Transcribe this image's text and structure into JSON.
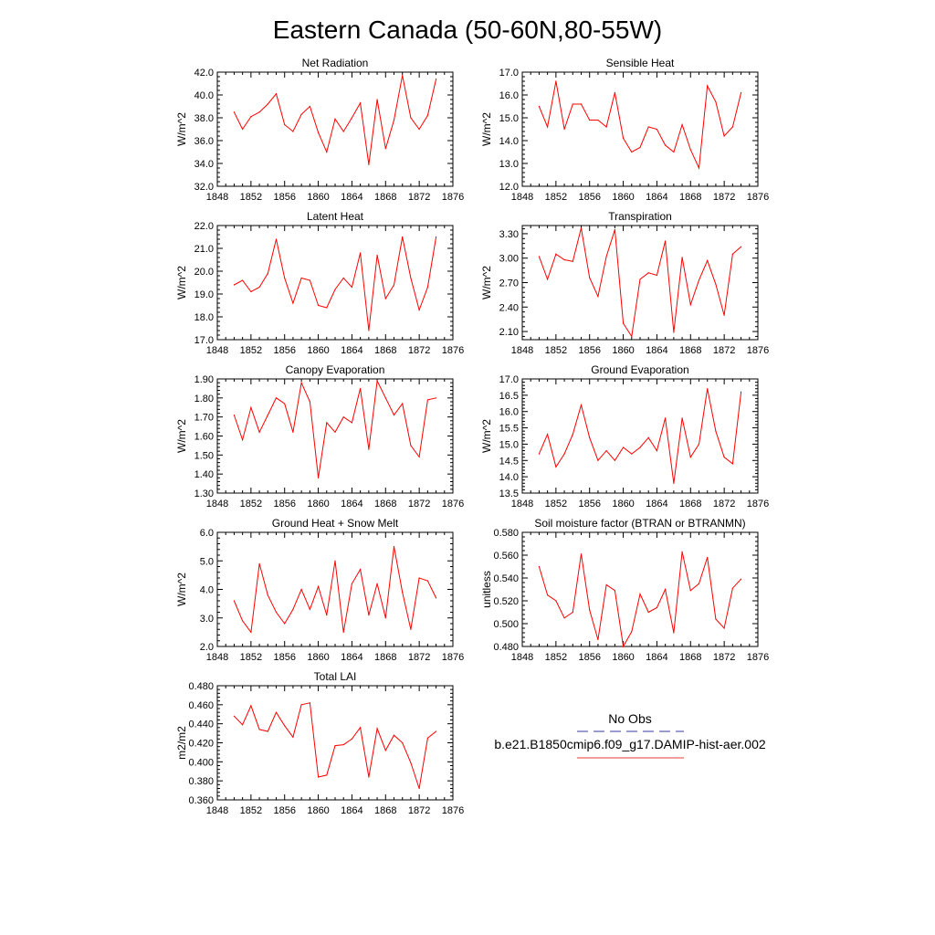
{
  "figure": {
    "title": "Eastern Canada (50-60N,80-55W)"
  },
  "legend": {
    "obs_label": "No Obs",
    "obs_color": "#3a3aa0",
    "model_label": "b.e21.B1850cmip6.f09_g17.DAMIP-hist-aer.002",
    "model_color": "#e43a3a"
  },
  "chart_data": [
    {
      "type": "line",
      "title": "Net Radiation",
      "ylabel": "W/m^2",
      "xlim": [
        1848,
        1876
      ],
      "xticks": [
        "1848",
        "1852",
        "1856",
        "1860",
        "1864",
        "1868",
        "1872",
        "1876"
      ],
      "ylim": [
        32.0,
        42.0
      ],
      "yticks": [
        "32.0",
        "34.0",
        "36.0",
        "38.0",
        "40.0",
        "42.0"
      ],
      "series": [
        {
          "color": "#ff0000",
          "x": [
            1850,
            1851,
            1852,
            1853,
            1854,
            1855,
            1856,
            1857,
            1858,
            1859,
            1860,
            1861,
            1862,
            1863,
            1864,
            1865,
            1866,
            1867,
            1868,
            1869,
            1870,
            1871,
            1872,
            1873,
            1874
          ],
          "values": [
            38.5,
            37.0,
            38.1,
            38.5,
            39.2,
            40.1,
            37.4,
            36.8,
            38.3,
            39.0,
            36.7,
            35.0,
            37.9,
            36.8,
            38.0,
            39.3,
            33.9,
            39.6,
            35.3,
            37.8,
            41.7,
            38.0,
            37.0,
            38.2,
            41.4
          ]
        }
      ]
    },
    {
      "type": "line",
      "title": "Sensible Heat",
      "ylabel": "W/m^2",
      "xlim": [
        1848,
        1876
      ],
      "xticks": [
        "1848",
        "1852",
        "1856",
        "1860",
        "1864",
        "1868",
        "1872",
        "1876"
      ],
      "ylim": [
        12.0,
        17.0
      ],
      "yticks": [
        "12.0",
        "13.0",
        "14.0",
        "15.0",
        "16.0",
        "17.0"
      ],
      "series": [
        {
          "color": "#ff0000",
          "x": [
            1850,
            1851,
            1852,
            1853,
            1854,
            1855,
            1856,
            1857,
            1858,
            1859,
            1860,
            1861,
            1862,
            1863,
            1864,
            1865,
            1866,
            1867,
            1868,
            1869,
            1870,
            1871,
            1872,
            1873,
            1874
          ],
          "values": [
            15.5,
            14.6,
            16.6,
            14.5,
            15.6,
            15.6,
            14.9,
            14.9,
            14.6,
            16.1,
            14.1,
            13.5,
            13.7,
            14.6,
            14.5,
            13.8,
            13.5,
            14.7,
            13.6,
            12.8,
            16.4,
            15.7,
            14.2,
            14.6,
            16.1
          ]
        }
      ]
    },
    {
      "type": "line",
      "title": "Latent Heat",
      "ylabel": "W/m^2",
      "xlim": [
        1848,
        1876
      ],
      "xticks": [
        "1848",
        "1852",
        "1856",
        "1860",
        "1864",
        "1868",
        "1872",
        "1876"
      ],
      "ylim": [
        17.0,
        22.0
      ],
      "yticks": [
        "17.0",
        "18.0",
        "19.0",
        "20.0",
        "21.0",
        "22.0"
      ],
      "series": [
        {
          "color": "#ff0000",
          "x": [
            1850,
            1851,
            1852,
            1853,
            1854,
            1855,
            1856,
            1857,
            1858,
            1859,
            1860,
            1861,
            1862,
            1863,
            1864,
            1865,
            1866,
            1867,
            1868,
            1869,
            1870,
            1871,
            1872,
            1873,
            1874
          ],
          "values": [
            19.4,
            19.6,
            19.1,
            19.3,
            19.9,
            21.4,
            19.7,
            18.6,
            19.7,
            19.6,
            18.5,
            18.4,
            19.2,
            19.7,
            19.3,
            20.8,
            17.4,
            20.7,
            18.8,
            19.4,
            21.5,
            19.7,
            18.3,
            19.3,
            21.5
          ]
        }
      ]
    },
    {
      "type": "line",
      "title": "Transpiration",
      "ylabel": "W/m^2",
      "xlim": [
        1848,
        1876
      ],
      "xticks": [
        "1848",
        "1852",
        "1856",
        "1860",
        "1864",
        "1868",
        "1872",
        "1876"
      ],
      "ylim": [
        2.0,
        3.4
      ],
      "yticks": [
        "2.10",
        "2.40",
        "2.70",
        "3.00",
        "3.30"
      ],
      "ytick_values": [
        2.1,
        2.4,
        2.7,
        3.0,
        3.3
      ],
      "series": [
        {
          "color": "#ff0000",
          "x": [
            1850,
            1851,
            1852,
            1853,
            1854,
            1855,
            1856,
            1857,
            1858,
            1859,
            1860,
            1861,
            1862,
            1863,
            1864,
            1865,
            1866,
            1867,
            1868,
            1869,
            1870,
            1871,
            1872,
            1873,
            1874
          ],
          "values": [
            3.02,
            2.74,
            3.05,
            2.98,
            2.96,
            3.37,
            2.76,
            2.53,
            3.02,
            3.35,
            2.2,
            2.04,
            2.74,
            2.82,
            2.79,
            3.21,
            2.09,
            3.01,
            2.43,
            2.73,
            2.97,
            2.68,
            2.3,
            3.05,
            3.14
          ]
        }
      ]
    },
    {
      "type": "line",
      "title": "Canopy Evaporation",
      "ylabel": "W/m^2",
      "xlim": [
        1848,
        1876
      ],
      "xticks": [
        "1848",
        "1852",
        "1856",
        "1860",
        "1864",
        "1868",
        "1872",
        "1876"
      ],
      "ylim": [
        1.3,
        1.9
      ],
      "yticks": [
        "1.30",
        "1.40",
        "1.50",
        "1.60",
        "1.70",
        "1.80",
        "1.90"
      ],
      "series": [
        {
          "color": "#ff0000",
          "x": [
            1850,
            1851,
            1852,
            1853,
            1854,
            1855,
            1856,
            1857,
            1858,
            1859,
            1860,
            1861,
            1862,
            1863,
            1864,
            1865,
            1866,
            1867,
            1868,
            1869,
            1870,
            1871,
            1872,
            1873,
            1874
          ],
          "values": [
            1.71,
            1.58,
            1.75,
            1.62,
            1.71,
            1.8,
            1.77,
            1.62,
            1.88,
            1.78,
            1.38,
            1.67,
            1.62,
            1.7,
            1.67,
            1.85,
            1.53,
            1.89,
            1.8,
            1.71,
            1.77,
            1.55,
            1.49,
            1.79,
            1.8
          ]
        }
      ]
    },
    {
      "type": "line",
      "title": "Ground Evaporation",
      "ylabel": "W/m^2",
      "xlim": [
        1848,
        1876
      ],
      "xticks": [
        "1848",
        "1852",
        "1856",
        "1860",
        "1864",
        "1868",
        "1872",
        "1876"
      ],
      "ylim": [
        13.5,
        17.0
      ],
      "yticks": [
        "13.5",
        "14.0",
        "14.5",
        "15.0",
        "15.5",
        "16.0",
        "16.5",
        "17.0"
      ],
      "series": [
        {
          "color": "#ff0000",
          "x": [
            1850,
            1851,
            1852,
            1853,
            1854,
            1855,
            1856,
            1857,
            1858,
            1859,
            1860,
            1861,
            1862,
            1863,
            1864,
            1865,
            1866,
            1867,
            1868,
            1869,
            1870,
            1871,
            1872,
            1873,
            1874
          ],
          "values": [
            14.7,
            15.3,
            14.3,
            14.7,
            15.3,
            16.2,
            15.2,
            14.5,
            14.8,
            14.5,
            14.9,
            14.7,
            14.9,
            15.2,
            14.8,
            15.8,
            13.8,
            15.8,
            14.6,
            15.0,
            16.7,
            15.4,
            14.6,
            14.4,
            16.6
          ]
        }
      ]
    },
    {
      "type": "line",
      "title": "Ground Heat + Snow Melt",
      "ylabel": "W/m^2",
      "xlim": [
        1848,
        1876
      ],
      "xticks": [
        "1848",
        "1852",
        "1856",
        "1860",
        "1864",
        "1868",
        "1872",
        "1876"
      ],
      "ylim": [
        2.0,
        6.0
      ],
      "yticks": [
        "2.0",
        "3.0",
        "4.0",
        "5.0",
        "6.0"
      ],
      "series": [
        {
          "color": "#ff0000",
          "x": [
            1850,
            1851,
            1852,
            1853,
            1854,
            1855,
            1856,
            1857,
            1858,
            1859,
            1860,
            1861,
            1862,
            1863,
            1864,
            1865,
            1866,
            1867,
            1868,
            1869,
            1870,
            1871,
            1872,
            1873,
            1874
          ],
          "values": [
            3.6,
            2.9,
            2.5,
            4.9,
            3.8,
            3.2,
            2.8,
            3.3,
            4.0,
            3.3,
            4.1,
            3.1,
            5.0,
            2.5,
            4.2,
            4.7,
            3.1,
            4.2,
            3.0,
            5.5,
            3.9,
            2.6,
            4.4,
            4.3,
            3.7
          ]
        }
      ]
    },
    {
      "type": "line",
      "title": "Soil moisture factor (BTRAN or BTRANMN)",
      "ylabel": "unitless",
      "xlim": [
        1848,
        1876
      ],
      "xticks": [
        "1848",
        "1852",
        "1856",
        "1860",
        "1864",
        "1868",
        "1872",
        "1876"
      ],
      "ylim": [
        0.48,
        0.58
      ],
      "yticks": [
        "0.480",
        "0.500",
        "0.520",
        "0.540",
        "0.560",
        "0.580"
      ],
      "series": [
        {
          "color": "#ff0000",
          "x": [
            1850,
            1851,
            1852,
            1853,
            1854,
            1855,
            1856,
            1857,
            1858,
            1859,
            1860,
            1861,
            1862,
            1863,
            1864,
            1865,
            1866,
            1867,
            1868,
            1869,
            1870,
            1871,
            1872,
            1873,
            1874
          ],
          "values": [
            0.55,
            0.525,
            0.52,
            0.505,
            0.51,
            0.561,
            0.512,
            0.486,
            0.534,
            0.529,
            0.48,
            0.493,
            0.526,
            0.51,
            0.514,
            0.53,
            0.492,
            0.563,
            0.529,
            0.535,
            0.558,
            0.504,
            0.496,
            0.531,
            0.539
          ]
        }
      ]
    },
    {
      "type": "line",
      "title": "Total LAI",
      "ylabel": "m2/m2",
      "xlim": [
        1848,
        1876
      ],
      "xticks": [
        "1848",
        "1852",
        "1856",
        "1860",
        "1864",
        "1868",
        "1872",
        "1876"
      ],
      "ylim": [
        0.36,
        0.48
      ],
      "yticks": [
        "0.360",
        "0.380",
        "0.400",
        "0.420",
        "0.440",
        "0.460",
        "0.480"
      ],
      "series": [
        {
          "color": "#ff0000",
          "x": [
            1850,
            1851,
            1852,
            1853,
            1854,
            1855,
            1856,
            1857,
            1858,
            1859,
            1860,
            1861,
            1862,
            1863,
            1864,
            1865,
            1866,
            1867,
            1868,
            1869,
            1870,
            1871,
            1872,
            1873,
            1874
          ],
          "values": [
            0.448,
            0.439,
            0.459,
            0.434,
            0.432,
            0.452,
            0.438,
            0.426,
            0.46,
            0.462,
            0.384,
            0.386,
            0.417,
            0.418,
            0.424,
            0.436,
            0.384,
            0.435,
            0.412,
            0.428,
            0.42,
            0.399,
            0.372,
            0.425,
            0.432
          ]
        }
      ]
    }
  ]
}
